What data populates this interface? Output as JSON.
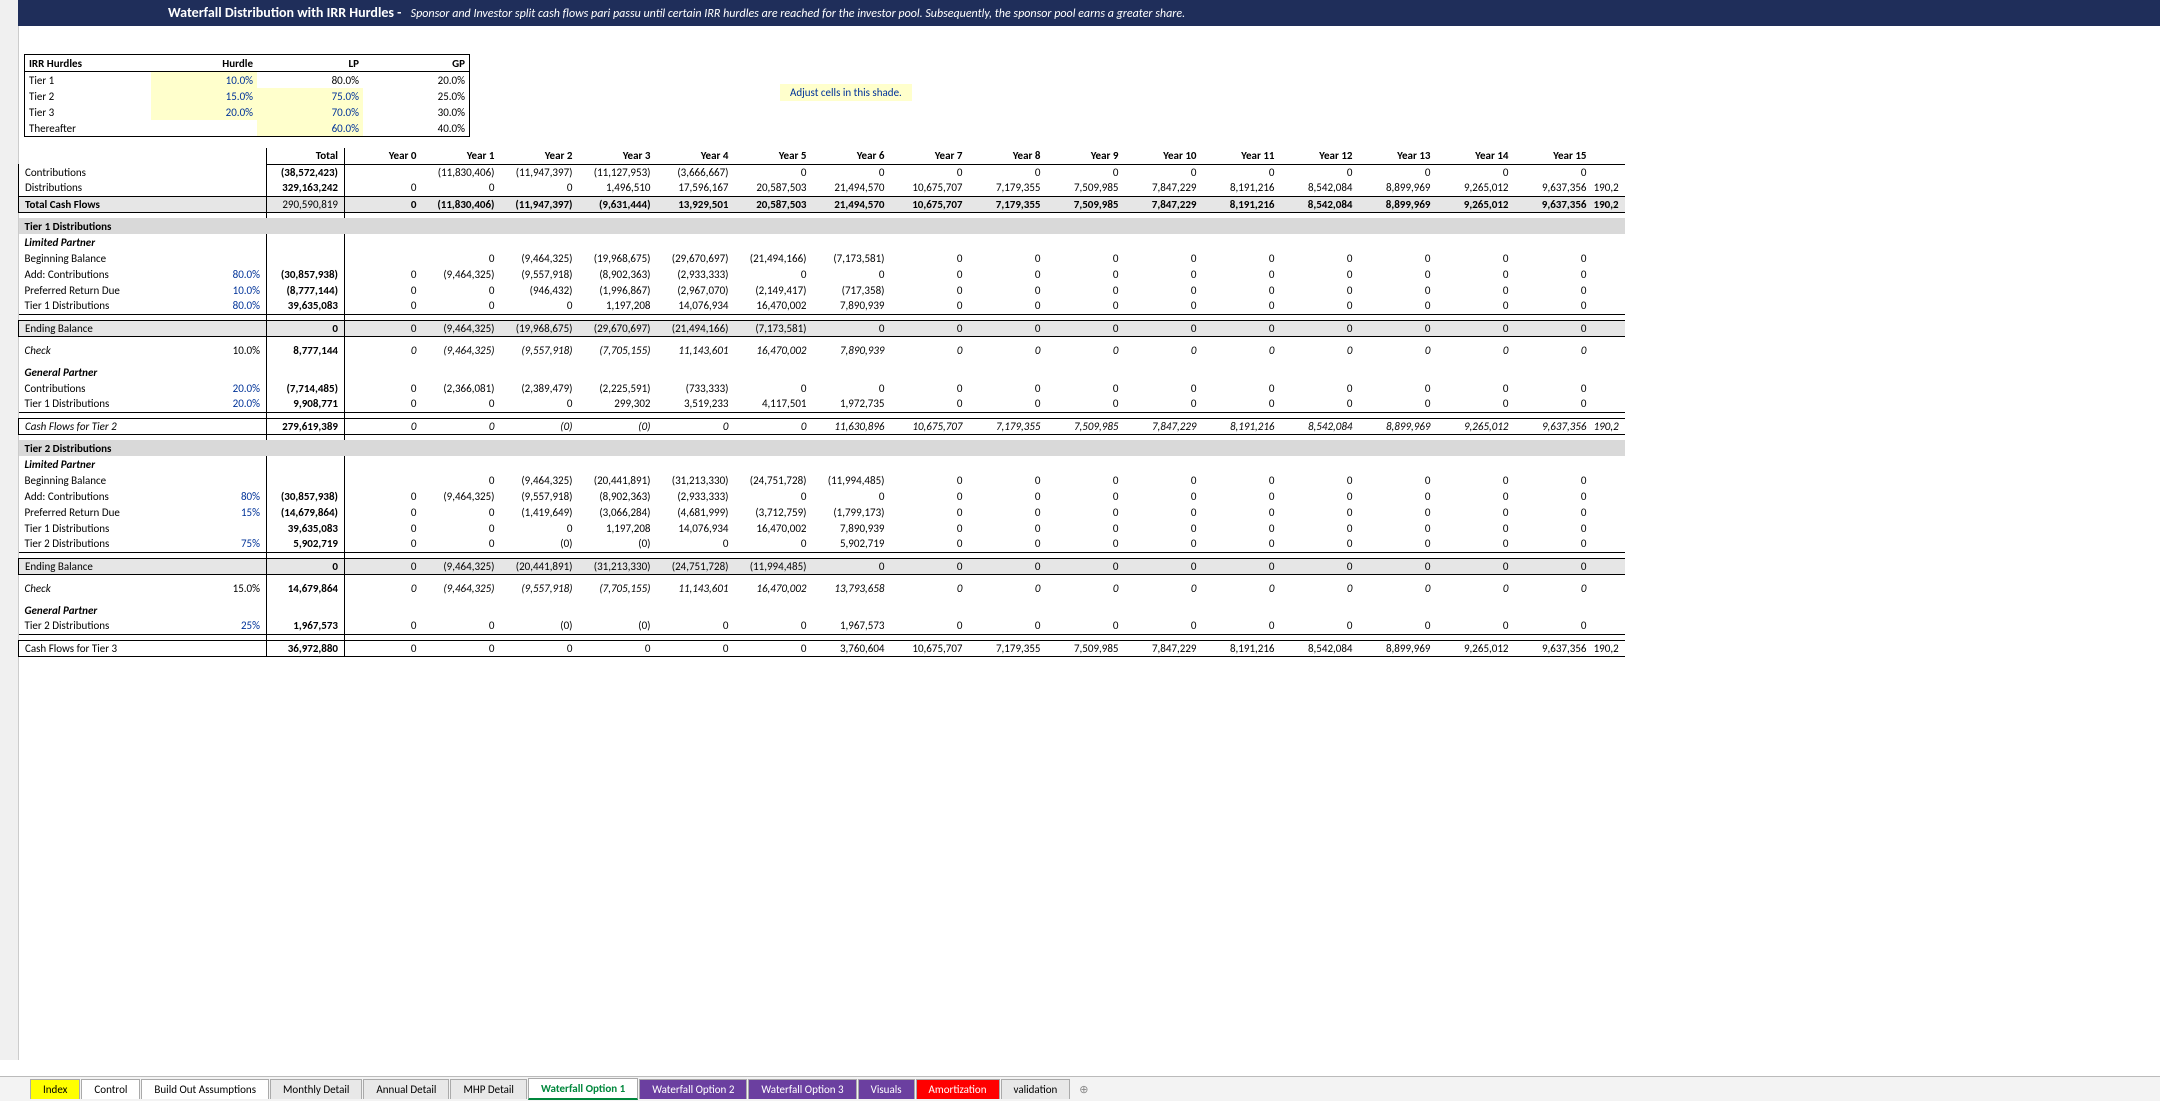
{
  "title": {
    "main": "Waterfall Distribution with IRR Hurdles -",
    "sub": "Sponsor and Investor split cash flows pari passu until certain IRR hurdles are reached for the investor pool. Subsequently, the sponsor pool earns a greater share."
  },
  "adjust_note": "Adjust cells in this shade.",
  "hurdles": {
    "header": {
      "name": "IRR Hurdles",
      "hurdle": "Hurdle",
      "lp": "LP",
      "gp": "GP"
    },
    "rows": [
      {
        "name": "Tier 1",
        "hurdle": "10.0%",
        "lp": "80.0%",
        "gp": "20.0%"
      },
      {
        "name": "Tier 2",
        "hurdle": "15.0%",
        "lp": "75.0%",
        "gp": "25.0%"
      },
      {
        "name": "Tier 3",
        "hurdle": "20.0%",
        "lp": "70.0%",
        "gp": "30.0%"
      },
      {
        "name": "Thereafter",
        "hurdle": "",
        "lp": "60.0%",
        "gp": "40.0%"
      }
    ]
  },
  "years": [
    "Year 0",
    "Year 1",
    "Year 2",
    "Year 3",
    "Year 4",
    "Year 5",
    "Year 6",
    "Year 7",
    "Year 8",
    "Year 9",
    "Year 10",
    "Year 11",
    "Year 12",
    "Year 13",
    "Year 14",
    "Year 15",
    ""
  ],
  "total_label": "Total",
  "rows": [
    {
      "type": "hdr"
    },
    {
      "lab": "Contributions",
      "tot": "(38,572,423)",
      "vals": [
        "",
        "(11,830,406)",
        "(11,947,397)",
        "(11,127,953)",
        "(3,666,667)",
        "0",
        "0",
        "0",
        "0",
        "0",
        "0",
        "0",
        "0",
        "0",
        "0",
        "0",
        ""
      ],
      "totBold": true,
      "box": true
    },
    {
      "lab": "Distributions",
      "tot": "329,163,242",
      "vals": [
        "0",
        "0",
        "0",
        "1,496,510",
        "17,596,167",
        "20,587,503",
        "21,494,570",
        "10,675,707",
        "7,179,355",
        "7,509,985",
        "7,847,229",
        "8,191,216",
        "8,542,084",
        "8,899,969",
        "9,265,012",
        "9,637,356",
        "190,2"
      ],
      "totBold": true,
      "box": true,
      "bB": true
    },
    {
      "lab": "Total Cash Flows",
      "tot": "290,590,819",
      "vals": [
        "0",
        "(11,830,406)",
        "(11,947,397)",
        "(9,631,444)",
        "13,929,501",
        "20,587,503",
        "21,494,570",
        "10,675,707",
        "7,179,355",
        "7,509,985",
        "7,847,229",
        "8,191,216",
        "8,542,084",
        "8,899,969",
        "9,265,012",
        "9,637,356",
        "190,2"
      ],
      "bold": true,
      "shade": true,
      "box": true,
      "bB": true
    },
    {
      "type": "gap"
    },
    {
      "lab": "Tier 1 Distributions",
      "sec": true
    },
    {
      "lab": "Limited Partner",
      "bold": true,
      "it": true
    },
    {
      "lab": "Beginning Balance",
      "vals": [
        "",
        "0",
        "(9,464,325)",
        "(19,968,675)",
        "(29,670,697)",
        "(21,494,166)",
        "(7,173,581)",
        "0",
        "0",
        "0",
        "0",
        "0",
        "0",
        "0",
        "0",
        "0",
        ""
      ]
    },
    {
      "lab": "Add: Contributions",
      "pct": "80.0%",
      "tot": "(30,857,938)",
      "vals": [
        "0",
        "(9,464,325)",
        "(9,557,918)",
        "(8,902,363)",
        "(2,933,333)",
        "0",
        "0",
        "0",
        "0",
        "0",
        "0",
        "0",
        "0",
        "0",
        "0",
        "0",
        ""
      ],
      "totBold": true,
      "pctBlue": true
    },
    {
      "lab": "Preferred Return Due",
      "pct": "10.0%",
      "tot": "(8,777,144)",
      "vals": [
        "0",
        "0",
        "(946,432)",
        "(1,996,867)",
        "(2,967,070)",
        "(2,149,417)",
        "(717,358)",
        "0",
        "0",
        "0",
        "0",
        "0",
        "0",
        "0",
        "0",
        "0",
        ""
      ],
      "totBold": true,
      "pctBlue": true
    },
    {
      "lab": "Tier 1 Distributions",
      "pct": "80.0%",
      "tot": "39,635,083",
      "vals": [
        "0",
        "0",
        "0",
        "1,197,208",
        "14,076,934",
        "16,470,002",
        "7,890,939",
        "0",
        "0",
        "0",
        "0",
        "0",
        "0",
        "0",
        "0",
        "0",
        ""
      ],
      "totBold": true,
      "pctBlue": true,
      "bB": true
    },
    {
      "type": "gap"
    },
    {
      "lab": "Ending Balance",
      "tot": "0",
      "vals": [
        "0",
        "(9,464,325)",
        "(19,968,675)",
        "(29,670,697)",
        "(21,494,166)",
        "(7,173,581)",
        "0",
        "0",
        "0",
        "0",
        "0",
        "0",
        "0",
        "0",
        "0",
        "0",
        ""
      ],
      "shade": true,
      "bT": true,
      "bB": true,
      "box": true,
      "totBold": true
    },
    {
      "type": "gap"
    },
    {
      "lab": "Check",
      "pct": "10.0%",
      "tot": "8,777,144",
      "vals": [
        "0",
        "(9,464,325)",
        "(9,557,918)",
        "(7,705,155)",
        "11,143,601",
        "16,470,002",
        "7,890,939",
        "0",
        "0",
        "0",
        "0",
        "0",
        "0",
        "0",
        "0",
        "0",
        ""
      ],
      "it": true,
      "totBold": true
    },
    {
      "type": "gap"
    },
    {
      "lab": "General Partner",
      "bold": true,
      "it": true
    },
    {
      "lab": "Contributions",
      "pct": "20.0%",
      "tot": "(7,714,485)",
      "vals": [
        "0",
        "(2,366,081)",
        "(2,389,479)",
        "(2,225,591)",
        "(733,333)",
        "0",
        "0",
        "0",
        "0",
        "0",
        "0",
        "0",
        "0",
        "0",
        "0",
        "0",
        ""
      ],
      "totBold": true,
      "pctBlue": true
    },
    {
      "lab": "Tier 1 Distributions",
      "pct": "20.0%",
      "tot": "9,908,771",
      "vals": [
        "0",
        "0",
        "0",
        "299,302",
        "3,519,233",
        "4,117,501",
        "1,972,735",
        "0",
        "0",
        "0",
        "0",
        "0",
        "0",
        "0",
        "0",
        "0",
        ""
      ],
      "totBold": true,
      "pctBlue": true,
      "bB": true
    },
    {
      "type": "gap"
    },
    {
      "lab": "Cash Flows for Tier 2",
      "tot": "279,619,389",
      "vals": [
        "0",
        "0",
        "(0)",
        "(0)",
        "0",
        "0",
        "11,630,896",
        "10,675,707",
        "7,179,355",
        "7,509,985",
        "7,847,229",
        "8,191,216",
        "8,542,084",
        "8,899,969",
        "9,265,012",
        "9,637,356",
        "190,2"
      ],
      "it": true,
      "bT": true,
      "bB": true,
      "box": true,
      "totBold": true
    },
    {
      "type": "gap"
    },
    {
      "lab": "Tier 2 Distributions",
      "sec": true
    },
    {
      "lab": "Limited Partner",
      "bold": true,
      "it": true
    },
    {
      "lab": "Beginning Balance",
      "vals": [
        "",
        "0",
        "(9,464,325)",
        "(20,441,891)",
        "(31,213,330)",
        "(24,751,728)",
        "(11,994,485)",
        "0",
        "0",
        "0",
        "0",
        "0",
        "0",
        "0",
        "0",
        "0",
        ""
      ]
    },
    {
      "lab": "Add: Contributions",
      "pct": "80%",
      "tot": "(30,857,938)",
      "vals": [
        "0",
        "(9,464,325)",
        "(9,557,918)",
        "(8,902,363)",
        "(2,933,333)",
        "0",
        "0",
        "0",
        "0",
        "0",
        "0",
        "0",
        "0",
        "0",
        "0",
        "0",
        ""
      ],
      "totBold": true,
      "pctBlue": true
    },
    {
      "lab": "Preferred Return Due",
      "pct": "15%",
      "tot": "(14,679,864)",
      "vals": [
        "0",
        "0",
        "(1,419,649)",
        "(3,066,284)",
        "(4,681,999)",
        "(3,712,759)",
        "(1,799,173)",
        "0",
        "0",
        "0",
        "0",
        "0",
        "0",
        "0",
        "0",
        "0",
        ""
      ],
      "totBold": true,
      "pctBlue": true
    },
    {
      "lab": "Tier 1 Distributions",
      "tot": "39,635,083",
      "vals": [
        "0",
        "0",
        "0",
        "1,197,208",
        "14,076,934",
        "16,470,002",
        "7,890,939",
        "0",
        "0",
        "0",
        "0",
        "0",
        "0",
        "0",
        "0",
        "0",
        ""
      ],
      "totBold": true
    },
    {
      "lab": "Tier 2 Distributions",
      "pct": "75%",
      "tot": "5,902,719",
      "vals": [
        "0",
        "0",
        "(0)",
        "(0)",
        "0",
        "0",
        "5,902,719",
        "0",
        "0",
        "0",
        "0",
        "0",
        "0",
        "0",
        "0",
        "0",
        ""
      ],
      "totBold": true,
      "pctBlue": true,
      "bB": true
    },
    {
      "type": "gap"
    },
    {
      "lab": "Ending Balance",
      "tot": "0",
      "vals": [
        "0",
        "(9,464,325)",
        "(20,441,891)",
        "(31,213,330)",
        "(24,751,728)",
        "(11,994,485)",
        "0",
        "0",
        "0",
        "0",
        "0",
        "0",
        "0",
        "0",
        "0",
        "0",
        ""
      ],
      "shade": true,
      "bT": true,
      "bB": true,
      "box": true,
      "totBold": true
    },
    {
      "type": "gap"
    },
    {
      "lab": "Check",
      "pct": "15.0%",
      "tot": "14,679,864",
      "vals": [
        "0",
        "(9,464,325)",
        "(9,557,918)",
        "(7,705,155)",
        "11,143,601",
        "16,470,002",
        "13,793,658",
        "0",
        "0",
        "0",
        "0",
        "0",
        "0",
        "0",
        "0",
        "0",
        ""
      ],
      "it": true,
      "totBold": true
    },
    {
      "type": "gap"
    },
    {
      "lab": "General Partner",
      "bold": true,
      "it": true
    },
    {
      "lab": "Tier 2 Distributions",
      "pct": "25%",
      "tot": "1,967,573",
      "vals": [
        "0",
        "0",
        "(0)",
        "(0)",
        "0",
        "0",
        "1,967,573",
        "0",
        "0",
        "0",
        "0",
        "0",
        "0",
        "0",
        "0",
        "0",
        ""
      ],
      "totBold": true,
      "pctBlue": true,
      "bB": true
    },
    {
      "type": "gap"
    },
    {
      "lab": "Cash Flows for Tier 3",
      "tot": "36,972,880",
      "vals": [
        "0",
        "0",
        "0",
        "0",
        "0",
        "0",
        "3,760,604",
        "10,675,707",
        "7,179,355",
        "7,509,985",
        "7,847,229",
        "8,191,216",
        "8,542,084",
        "8,899,969",
        "9,265,012",
        "9,637,356",
        "190,2"
      ],
      "bT": true,
      "bB": true,
      "box": true,
      "totBold": true
    }
  ],
  "tabs": [
    "Index",
    "Control",
    "Build Out Assumptions",
    "Monthly Detail",
    "Annual Detail",
    "MHP Detail",
    "Waterfall Option 1",
    "Waterfall Option 2",
    "Waterfall Option 3",
    "Visuals",
    "Amortization",
    "validation"
  ],
  "colors": {
    "title_bg": "#1f2e5a",
    "highlight": "#ffffcc",
    "shade": "#e6e6e6",
    "blue": "#003399"
  }
}
